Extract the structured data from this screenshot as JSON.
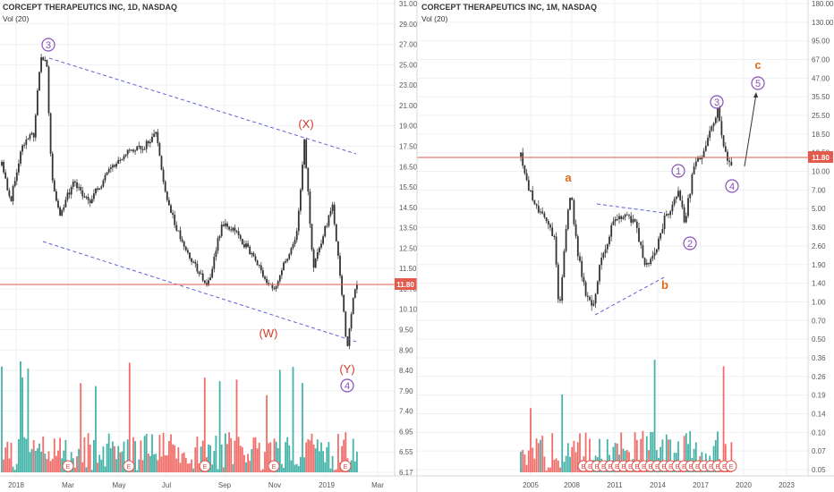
{
  "charts": [
    {
      "title": "CORCEPT THERAPEUTICS INC, 1D, NASDAQ",
      "indicator": "Vol (20)",
      "price_label": "11.80",
      "price_ticks": [
        "31.00",
        "29.00",
        "27.00",
        "25.00",
        "23.00",
        "21.00",
        "19.00",
        "17.50",
        "16.50",
        "15.50",
        "14.50",
        "13.50",
        "12.50",
        "11.50",
        "10.70",
        "10.10",
        "9.50",
        "8.90",
        "8.40",
        "7.90",
        "7.40",
        "6.95",
        "6.55",
        "6.17"
      ],
      "time_ticks": [
        "2018",
        "Mar",
        "May",
        "Jul",
        "Sep",
        "Nov",
        "2019",
        "Mar"
      ],
      "wave_labels": {
        "c3": "3",
        "X": "(X)",
        "W": "(W)",
        "Y": "(Y)",
        "c4": "4"
      },
      "earnings_marker": "E"
    },
    {
      "title": "CORCEPT THERAPEUTICS INC, 1M, NASDAQ",
      "indicator": "Vol (20)",
      "price_label": "11.80",
      "price_ticks": [
        "180.00",
        "130.00",
        "95.00",
        "67.00",
        "47.00",
        "35.50",
        "25.50",
        "18.50",
        "13.50",
        "10.00",
        "7.00",
        "5.00",
        "3.60",
        "2.60",
        "1.90",
        "1.40",
        "1.00",
        "0.70",
        "0.50",
        "0.36",
        "0.26",
        "0.19",
        "0.14",
        "0.10",
        "0.07",
        "0.05"
      ],
      "time_ticks": [
        "2005",
        "2008",
        "2011",
        "2014",
        "2017",
        "2020",
        "2023"
      ],
      "wave_labels": {
        "a": "a",
        "b": "b",
        "c": "c",
        "c1": "1",
        "c2": "2",
        "c3": "3",
        "c4": "4",
        "c5": "5"
      },
      "earnings_marker": "E"
    }
  ],
  "chart_data": [
    {
      "type": "candlestick",
      "title": "CORCEPT THERAPEUTICS INC, 1D, NASDAQ",
      "x": [
        "2018",
        "Mar",
        "May",
        "Jul",
        "Sep",
        "Nov",
        "2019",
        "Mar"
      ],
      "approx_closes": [
        15.0,
        24.5,
        14.0,
        16.0,
        18.5,
        13.8,
        14.5,
        13.0,
        16.5,
        19.2,
        14.0,
        10.0,
        11.8
      ],
      "last_price": 11.8,
      "y_scale": "log",
      "ylim": [
        6.17,
        31.0
      ],
      "volume_indicator": "Vol (20)"
    },
    {
      "type": "candlestick",
      "title": "CORCEPT THERAPEUTICS INC, 1M, NASDAQ",
      "x": [
        "2005",
        "2008",
        "2011",
        "2014",
        "2017",
        "2020",
        "2023"
      ],
      "approx_closes": [
        12.0,
        5.0,
        1.0,
        3.5,
        0.8,
        4.0,
        2.0,
        5.0,
        8.0,
        2.5,
        15.0,
        25.0,
        11.8
      ],
      "last_price": 11.8,
      "y_scale": "log",
      "ylim": [
        0.05,
        180.0
      ],
      "volume_indicator": "Vol (20)"
    }
  ]
}
